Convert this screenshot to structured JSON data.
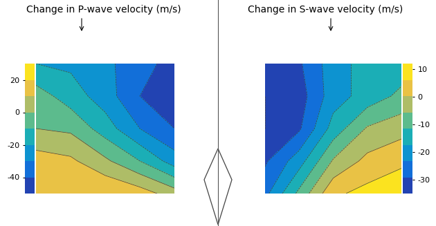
{
  "chart_data": [
    {
      "type": "contour",
      "title": "Change in P-wave velocity (m/s)",
      "cells": [
        [
          -20,
          -22,
          -28,
          -35,
          -45
        ],
        [
          -5,
          -15,
          -25,
          -40,
          -50
        ],
        [
          0,
          -2,
          -15,
          -30,
          -40
        ],
        [
          15,
          12,
          2,
          -10,
          -25
        ],
        [
          18,
          20,
          20,
          15,
          5
        ]
      ],
      "colorbar_range": [
        -50,
        30
      ],
      "colorbar_ticks": [
        20,
        0,
        -20,
        -40
      ],
      "tick_labels": false
    },
    {
      "type": "contour",
      "title": "Change in S-wave velocity (m/s)",
      "cells": [
        [
          -30,
          -30,
          -20,
          -15,
          -15
        ],
        [
          -35,
          -32,
          -20,
          -15,
          -10
        ],
        [
          -35,
          -30,
          -15,
          -5,
          -2
        ],
        [
          -30,
          -20,
          -5,
          2,
          5
        ],
        [
          -25,
          -10,
          5,
          8,
          10
        ]
      ],
      "colorbar_range": [
        -35,
        12
      ],
      "colorbar_ticks": [
        10,
        0,
        -10,
        -20,
        -30
      ],
      "tick_labels": false
    }
  ]
}
